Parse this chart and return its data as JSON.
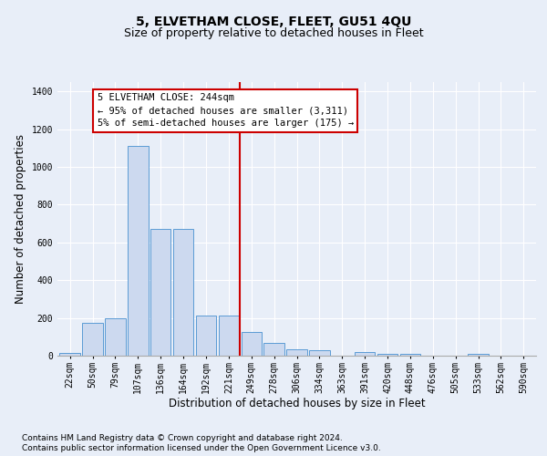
{
  "title": "5, ELVETHAM CLOSE, FLEET, GU51 4QU",
  "subtitle": "Size of property relative to detached houses in Fleet",
  "xlabel": "Distribution of detached houses by size in Fleet",
  "ylabel": "Number of detached properties",
  "bar_labels": [
    "22sqm",
    "50sqm",
    "79sqm",
    "107sqm",
    "136sqm",
    "164sqm",
    "192sqm",
    "221sqm",
    "249sqm",
    "278sqm",
    "306sqm",
    "334sqm",
    "363sqm",
    "391sqm",
    "420sqm",
    "448sqm",
    "476sqm",
    "505sqm",
    "533sqm",
    "562sqm",
    "590sqm"
  ],
  "bar_values": [
    15,
    175,
    200,
    1110,
    670,
    670,
    215,
    215,
    125,
    70,
    35,
    30,
    0,
    20,
    12,
    10,
    0,
    0,
    10,
    0,
    0
  ],
  "bar_color_fill": "#ccd9ef",
  "bar_color_edge": "#5b9bd5",
  "vline_color": "#cc0000",
  "annotation_text": "5 ELVETHAM CLOSE: 244sqm\n← 95% of detached houses are smaller (3,311)\n5% of semi-detached houses are larger (175) →",
  "annotation_box_edge": "#cc0000",
  "ylim": [
    0,
    1450
  ],
  "yticks": [
    0,
    200,
    400,
    600,
    800,
    1000,
    1200,
    1400
  ],
  "footer_line1": "Contains HM Land Registry data © Crown copyright and database right 2024.",
  "footer_line2": "Contains public sector information licensed under the Open Government Licence v3.0.",
  "bg_color": "#e8eef8",
  "plot_bg_color": "#e8eef8",
  "grid_color": "#ffffff",
  "title_fontsize": 10,
  "subtitle_fontsize": 9,
  "label_fontsize": 8.5,
  "tick_fontsize": 7,
  "footer_fontsize": 6.5
}
